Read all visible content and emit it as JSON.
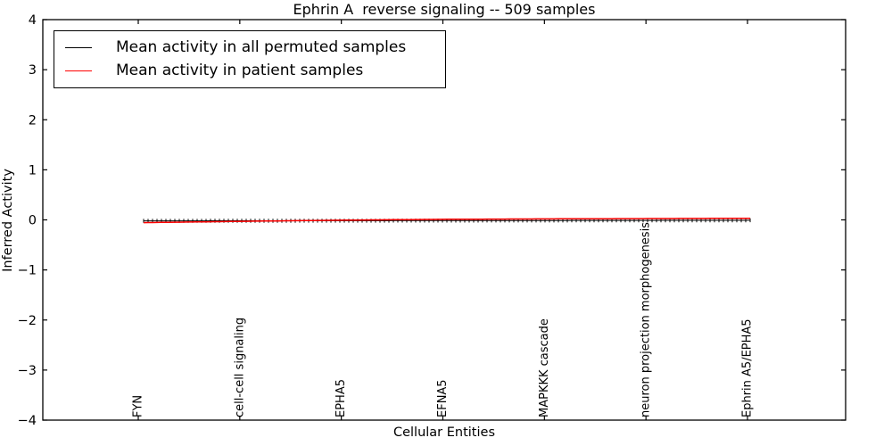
{
  "chart_data": {
    "type": "line",
    "title": "Ephrin A  reverse signaling -- 509 samples",
    "xlabel": "Cellular Entities",
    "ylabel": "Inferred Activity",
    "ylim": [
      -4,
      4
    ],
    "ytick_values": [
      4,
      3,
      2,
      1,
      0,
      -1,
      -2,
      -3,
      -4
    ],
    "ytick_labels": [
      "4",
      "3",
      "2",
      "1",
      "0",
      "−1",
      "−2",
      "−3",
      "−4"
    ],
    "categories": [
      "FYN",
      "cell-cell signaling",
      "EPHA5",
      "EFNA5",
      "MAPKKK cascade",
      "neuron projection morphogenesis",
      "Ephrin A5/EPHA5"
    ],
    "grid": false,
    "legend_position": "upper left",
    "n_points": 137,
    "series": [
      {
        "name": "Mean activity in all permuted samples",
        "color": "#000000",
        "marker": "vertical-tick",
        "values_at_categories": [
          -0.02,
          -0.018,
          -0.016,
          -0.014,
          -0.012,
          -0.01,
          -0.008
        ]
      },
      {
        "name": "Mean activity in patient samples",
        "color": "#ff0000",
        "marker": "none",
        "values_at_categories": [
          -0.055,
          -0.028,
          -0.005,
          0.012,
          0.02,
          0.026,
          0.032
        ]
      }
    ]
  },
  "colors": {
    "background": "#ffffff",
    "axis": "#000000",
    "patient_line": "#ff0000",
    "permuted_line": "#000000"
  }
}
